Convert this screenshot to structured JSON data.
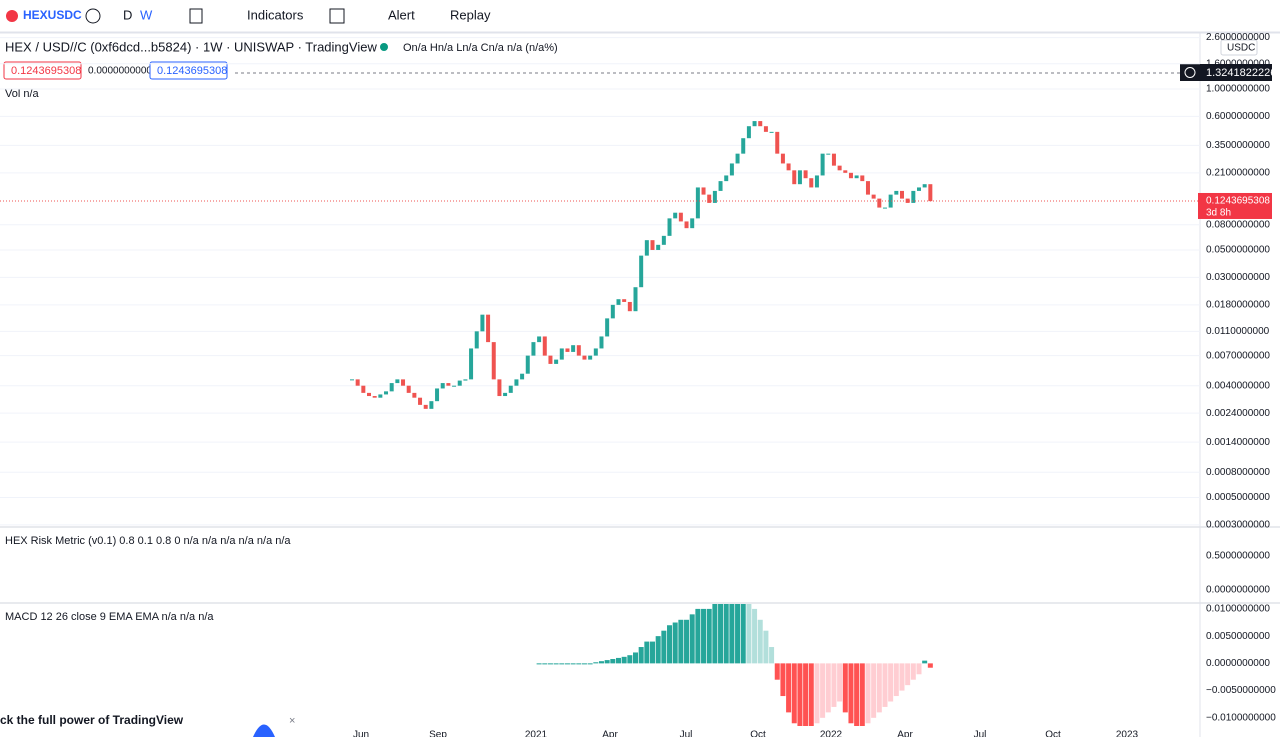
{
  "toolbar": {
    "symbol": "HEXUSDC",
    "intervals": [
      "D",
      "W"
    ],
    "buttons": [
      "Indicators",
      "Alert",
      "Replay"
    ]
  },
  "legend": {
    "title": "HEX / USD//C (0xf6dcd...b5824) · 1W · UNISWAP · TradingView",
    "ohlc": "On/a Hn/a Ln/a Cn/a n/a (n/a%)",
    "bid": "0.1243695308",
    "spread": "0.0000000000",
    "ask": "0.1243695308",
    "volume": "Vol  n/a"
  },
  "indicators": {
    "risk": "HEX Risk Metric (v0.1)  0.8  0.1  0.8  0   n/a  n/a  n/a  n/a  n/a  n/a",
    "macd": "MACD 12 26 close 9 EMA EMA   n/a  n/a  n/a"
  },
  "price_axis": {
    "currency": "USDC",
    "crosshair": "1.3241822226",
    "last": "0.1243695308",
    "countdown": "3d 8h",
    "log": true,
    "ylim": [
      0.000294,
      2.78
    ],
    "yticks": [
      {
        "value": 2.6,
        "label": "2.6000000000"
      },
      {
        "value": 1.6,
        "label": "1.6000000000"
      },
      {
        "value": 1,
        "label": "1.0000000000"
      },
      {
        "value": 0.6,
        "label": "0.6000000000"
      },
      {
        "value": 0.35,
        "label": "0.3500000000"
      },
      {
        "value": 0.21,
        "label": "0.2100000000"
      },
      {
        "value": 0.08,
        "label": "0.0800000000"
      },
      {
        "value": 0.05,
        "label": "0.0500000000"
      },
      {
        "value": 0.03,
        "label": "0.0300000000"
      },
      {
        "value": 0.018,
        "label": "0.0180000000"
      },
      {
        "value": 0.011,
        "label": "0.0110000000"
      },
      {
        "value": 0.007,
        "label": "0.0070000000"
      },
      {
        "value": 0.004,
        "label": "0.0040000000"
      },
      {
        "value": 0.0024,
        "label": "0.0024000000"
      },
      {
        "value": 0.0014,
        "label": "0.0014000000"
      },
      {
        "value": 0.0008,
        "label": "0.0008000000"
      },
      {
        "value": 0.0005,
        "label": "0.0005000000"
      },
      {
        "value": 0.0003,
        "label": "0.0003000000"
      }
    ]
  },
  "risk_axis": {
    "yticks": [
      {
        "value": 0.5,
        "label": "0.5000000000"
      },
      {
        "value": 0,
        "label": "0.0000000000"
      }
    ]
  },
  "macd_axis": {
    "ylim": [
      -0.0115,
      0.0109
    ],
    "yticks": [
      {
        "value": 0.01,
        "label": "0.0100000000"
      },
      {
        "value": 0.005,
        "label": "0.0050000000"
      },
      {
        "value": 0,
        "label": "0.0000000000"
      },
      {
        "value": -0.005,
        "label": "−0.0050000000"
      },
      {
        "value": -0.01,
        "label": "−0.0100000000"
      }
    ]
  },
  "time_axis": [
    "Jun",
    "Sep",
    "2021",
    "Apr",
    "Jul",
    "Oct",
    "2022",
    "Apr",
    "Jul",
    "Oct",
    "2023"
  ],
  "closes": [
    0.0045,
    0.004,
    0.0035,
    0.0033,
    0.0032,
    0.0034,
    0.0036,
    0.0042,
    0.0045,
    0.004,
    0.0035,
    0.0032,
    0.0028,
    0.0026,
    0.003,
    0.0038,
    0.0042,
    0.004,
    0.004,
    0.0044,
    0.0045,
    0.008,
    0.011,
    0.015,
    0.009,
    0.0045,
    0.0033,
    0.0035,
    0.004,
    0.0045,
    0.005,
    0.007,
    0.009,
    0.01,
    0.007,
    0.006,
    0.0065,
    0.008,
    0.0075,
    0.0085,
    0.007,
    0.0065,
    0.007,
    0.008,
    0.01,
    0.014,
    0.018,
    0.02,
    0.019,
    0.016,
    0.025,
    0.045,
    0.06,
    0.05,
    0.055,
    0.065,
    0.09,
    0.1,
    0.085,
    0.075,
    0.09,
    0.16,
    0.14,
    0.12,
    0.15,
    0.18,
    0.2,
    0.25,
    0.3,
    0.4,
    0.5,
    0.55,
    0.5,
    0.45,
    0.45,
    0.3,
    0.25,
    0.22,
    0.17,
    0.22,
    0.19,
    0.16,
    0.2,
    0.3,
    0.3,
    0.24,
    0.22,
    0.21,
    0.19,
    0.2,
    0.18,
    0.14,
    0.13,
    0.11,
    0.11,
    0.14,
    0.15,
    0.13,
    0.12,
    0.15,
    0.16,
    0.17,
    0.124
  ],
  "macd_hist": [
    null,
    null,
    null,
    null,
    null,
    null,
    null,
    null,
    null,
    null,
    null,
    null,
    null,
    null,
    null,
    null,
    null,
    null,
    null,
    null,
    null,
    null,
    null,
    null,
    null,
    null,
    null,
    null,
    null,
    null,
    null,
    null,
    null,
    0,
    0,
    0,
    0,
    0,
    0,
    0,
    0,
    0,
    0,
    0.0002,
    0.0004,
    0.0006,
    0.0008,
    0.001,
    0.0012,
    0.0015,
    0.002,
    0.003,
    0.004,
    0.004,
    0.005,
    0.006,
    0.007,
    0.0075,
    0.008,
    0.008,
    0.009,
    0.01,
    0.01,
    0.01,
    0.011,
    0.011,
    0.011,
    0.012,
    0.012,
    0.013,
    0.012,
    0.01,
    0.008,
    0.006,
    0.003,
    -0.003,
    -0.006,
    -0.009,
    -0.011,
    -0.012,
    -0.012,
    -0.012,
    -0.011,
    -0.01,
    -0.009,
    -0.008,
    -0.007,
    -0.009,
    -0.011,
    -0.012,
    -0.012,
    -0.011,
    -0.01,
    -0.009,
    -0.008,
    -0.007,
    -0.006,
    -0.005,
    -0.004,
    -0.003,
    -0.002,
    0.0005,
    -0.0008
  ],
  "banner": "ck the full power of TradingView"
}
